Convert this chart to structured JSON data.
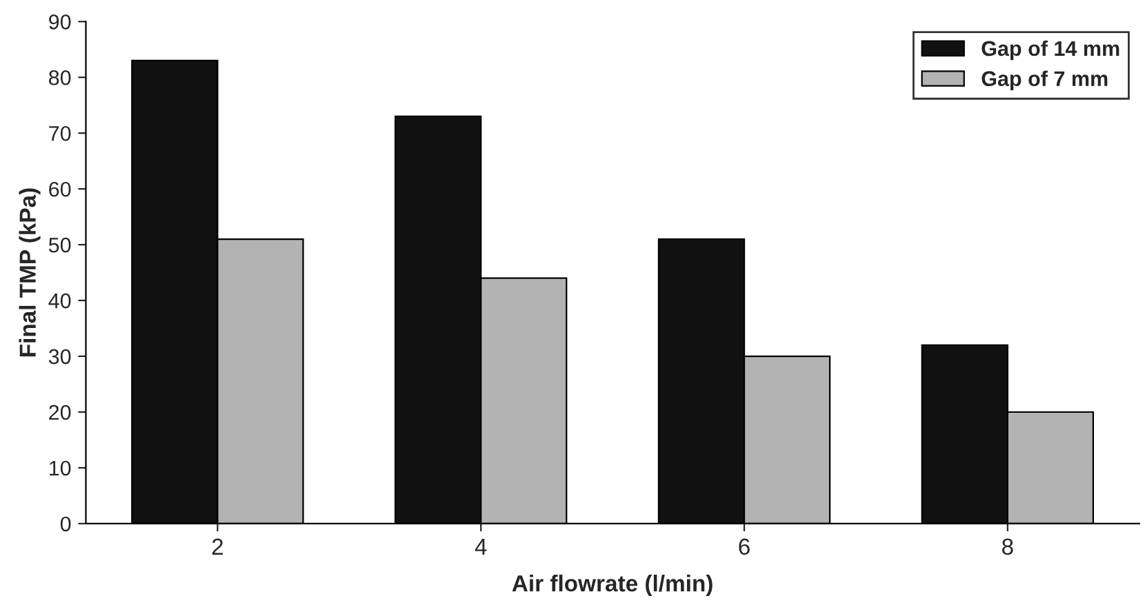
{
  "chart_data": {
    "type": "bar",
    "xlabel": "Air flowrate (l/min)",
    "ylabel": "Final TMP (kPa)",
    "categories": [
      "2",
      "4",
      "6",
      "8"
    ],
    "series": [
      {
        "name": "Gap of 14 mm",
        "color": "#111111",
        "values": [
          83,
          73,
          51,
          32
        ]
      },
      {
        "name": "Gap of 7 mm",
        "color": "#b3b3b3",
        "values": [
          51,
          44,
          30,
          20
        ]
      }
    ],
    "ylim": [
      0,
      90
    ],
    "yticks": [
      0,
      10,
      20,
      30,
      40,
      50,
      60,
      70,
      80,
      90
    ],
    "grid": false,
    "legend": "top right"
  }
}
